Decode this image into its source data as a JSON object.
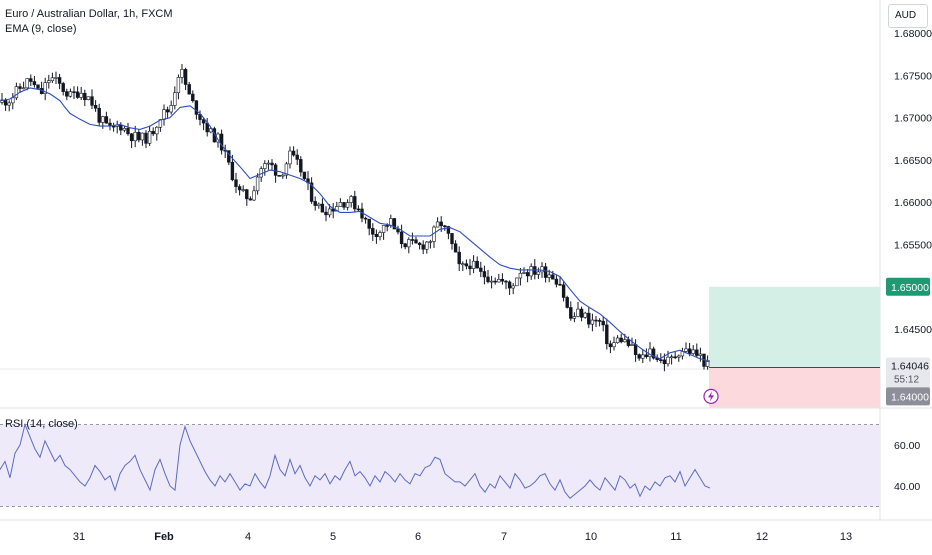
{
  "header": {
    "symbol_line": "Euro / Australian Dollar, 1h, FXCM",
    "ema_label": "EMA (9, close)",
    "currency_button": "AUD",
    "rsi_label": "RSI (14, close)",
    "alert_icon": "lightning-icon"
  },
  "price_scale": {
    "ticks": [
      "1.68000",
      "1.67500",
      "1.67000",
      "1.66500",
      "1.66000",
      "1.65500",
      "1.64500"
    ],
    "target_label": "1.65000",
    "current_price_label": "1.64046",
    "countdown_label": "55:12",
    "stop_label": "1.64000"
  },
  "rsi_scale": {
    "ticks": [
      "60.00",
      "40.00"
    ]
  },
  "time_axis": {
    "labels": [
      "31",
      "Feb",
      "4",
      "5",
      "6",
      "7",
      "10",
      "11",
      "12",
      "13"
    ]
  },
  "colors": {
    "up": "#ffffff",
    "down": "#131722",
    "wick": "#131722",
    "ema": "#2e4dbe",
    "target_fill": "#d4f0e6",
    "stop_fill": "#fcd9dc",
    "target_tag": "#1e9a72",
    "rsi_line": "#5c6bc0",
    "rsi_band": "#eeeafa",
    "grid": "#e0e3eb"
  },
  "chart_data": [
    {
      "type": "candlestick",
      "title": "Euro / Australian Dollar, 1h, FXCM",
      "x_labels": [
        "31",
        "Feb",
        "4",
        "5",
        "6",
        "7",
        "10",
        "11",
        "12",
        "13"
      ],
      "ylim": [
        1.6385,
        1.6815
      ],
      "series_ema": {
        "name": "EMA (9, close)",
        "x": [
          1,
          10,
          20,
          30,
          40,
          50,
          60,
          65,
          70,
          80,
          90,
          100,
          110,
          120,
          130,
          140,
          150,
          160,
          170,
          180,
          190,
          200,
          210,
          220,
          230,
          240,
          250,
          260,
          270,
          280,
          290,
          300,
          310,
          320,
          330,
          340,
          350,
          360,
          370,
          380,
          390,
          400,
          410,
          420,
          430,
          440,
          450,
          460,
          470,
          480,
          490,
          500,
          510,
          520,
          530,
          540,
          550,
          560,
          570,
          580,
          590,
          600,
          610,
          620,
          630,
          640,
          650,
          660,
          670,
          680,
          690,
          700,
          710
        ],
        "values": [
          1.672,
          1.6722,
          1.673,
          1.6735,
          1.6733,
          1.6728,
          1.672,
          1.6712,
          1.6705,
          1.6698,
          1.6692,
          1.669,
          1.669,
          1.6692,
          1.6688,
          1.6686,
          1.669,
          1.6697,
          1.67,
          1.6712,
          1.6714,
          1.6705,
          1.669,
          1.667,
          1.6655,
          1.6642,
          1.6628,
          1.6633,
          1.6638,
          1.6636,
          1.6632,
          1.6628,
          1.6622,
          1.661,
          1.6595,
          1.6588,
          1.6588,
          1.6589,
          1.6582,
          1.6575,
          1.6573,
          1.6568,
          1.656,
          1.656,
          1.656,
          1.6568,
          1.657,
          1.6565,
          1.6555,
          1.6545,
          1.6535,
          1.6526,
          1.6522,
          1.652,
          1.652,
          1.652,
          1.6518,
          1.6512,
          1.6497,
          1.6483,
          1.6475,
          1.6468,
          1.6458,
          1.6447,
          1.6437,
          1.6428,
          1.642,
          1.6415,
          1.6422,
          1.6425,
          1.642,
          1.6415,
          1.6412
        ]
      },
      "series_ohlc_trend": {
        "x": [
          0,
          10,
          20,
          30,
          40,
          50,
          60,
          70,
          80,
          90,
          100,
          110,
          120,
          130,
          140,
          150,
          160,
          170,
          180,
          190,
          200,
          210,
          220,
          230,
          240,
          250,
          260,
          270,
          280,
          290,
          300,
          310,
          320,
          330,
          340,
          350,
          360,
          370,
          380,
          390,
          400,
          410,
          420,
          430,
          440,
          450,
          460,
          470,
          480,
          490,
          500,
          510,
          520,
          530,
          540,
          550,
          560,
          570,
          580,
          590,
          600,
          610,
          620,
          630,
          640,
          650,
          660,
          670,
          680,
          690,
          700,
          708
        ],
        "close": [
          1.6718,
          1.6722,
          1.6735,
          1.6745,
          1.6726,
          1.6748,
          1.6738,
          1.6725,
          1.6732,
          1.6722,
          1.6698,
          1.6685,
          1.6692,
          1.668,
          1.6674,
          1.6678,
          1.6702,
          1.671,
          1.676,
          1.6722,
          1.6702,
          1.6682,
          1.6672,
          1.664,
          1.661,
          1.6605,
          1.664,
          1.6645,
          1.6632,
          1.6655,
          1.664,
          1.661,
          1.6592,
          1.6592,
          1.66,
          1.6602,
          1.6592,
          1.6565,
          1.6566,
          1.6578,
          1.6555,
          1.655,
          1.6548,
          1.6555,
          1.6578,
          1.6555,
          1.652,
          1.6528,
          1.6515,
          1.6512,
          1.6508,
          1.6498,
          1.652,
          1.6518,
          1.652,
          1.6516,
          1.6505,
          1.6462,
          1.647,
          1.646,
          1.6458,
          1.6428,
          1.644,
          1.643,
          1.6412,
          1.6425,
          1.6413,
          1.6412,
          1.6426,
          1.6424,
          1.6418,
          1.6405
        ]
      }
    },
    {
      "type": "line",
      "title": "RSI (14, close)",
      "y_ticks": [
        60,
        40
      ],
      "ylim": [
        32,
        72
      ],
      "band": [
        30,
        70
      ],
      "x": [
        0,
        5,
        10,
        15,
        20,
        25,
        30,
        35,
        40,
        45,
        50,
        55,
        60,
        65,
        70,
        75,
        80,
        85,
        90,
        95,
        100,
        105,
        110,
        115,
        120,
        125,
        130,
        135,
        140,
        145,
        150,
        155,
        160,
        165,
        170,
        175,
        180,
        185,
        190,
        195,
        200,
        205,
        210,
        215,
        220,
        225,
        230,
        235,
        240,
        245,
        250,
        255,
        260,
        265,
        270,
        275,
        280,
        285,
        290,
        295,
        300,
        305,
        310,
        315,
        320,
        325,
        330,
        335,
        340,
        345,
        350,
        355,
        360,
        365,
        370,
        375,
        380,
        385,
        390,
        395,
        400,
        405,
        410,
        415,
        420,
        425,
        430,
        435,
        440,
        445,
        450,
        455,
        460,
        465,
        470,
        475,
        480,
        485,
        490,
        495,
        500,
        505,
        510,
        515,
        520,
        525,
        530,
        535,
        540,
        545,
        550,
        555,
        560,
        565,
        570,
        575,
        580,
        585,
        590,
        595,
        600,
        605,
        610,
        615,
        620,
        625,
        630,
        635,
        640,
        645,
        650,
        655,
        660,
        665,
        670,
        675,
        680,
        685,
        690,
        695,
        700,
        705,
        710
      ],
      "values": [
        48,
        52,
        44,
        56,
        60,
        70,
        64,
        58,
        54,
        62,
        57,
        52,
        55,
        50,
        48,
        45,
        42,
        40,
        44,
        50,
        47,
        43,
        45,
        38,
        46,
        50,
        52,
        55,
        48,
        43,
        38,
        48,
        53,
        46,
        40,
        38,
        60,
        69,
        62,
        57,
        52,
        47,
        43,
        40,
        45,
        42,
        46,
        42,
        38,
        41,
        40,
        46,
        42,
        39,
        45,
        55,
        48,
        45,
        53,
        46,
        50,
        44,
        40,
        45,
        43,
        46,
        41,
        45,
        43,
        48,
        52,
        45,
        47,
        44,
        40,
        45,
        42,
        47,
        45,
        42,
        46,
        43,
        41,
        46,
        45,
        49,
        50,
        54,
        53,
        46,
        44,
        42,
        42,
        40,
        43,
        46,
        40,
        37,
        41,
        39,
        45,
        42,
        39,
        46,
        43,
        39,
        40,
        42,
        45,
        46,
        41,
        38,
        43,
        37,
        34,
        36,
        38,
        40,
        43,
        40,
        38,
        44,
        41,
        38,
        45,
        43,
        39,
        41,
        35,
        40,
        38,
        42,
        40,
        44,
        45,
        42,
        47,
        40,
        44,
        48,
        44,
        40,
        39
      ]
    }
  ]
}
